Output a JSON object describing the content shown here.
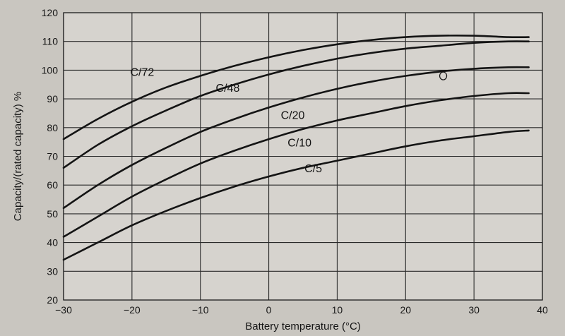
{
  "chart_data": {
    "type": "line",
    "xlabel": "Battery temperature (°C)",
    "ylabel": "Capacity/(rated capacity) %",
    "xlim": [
      -30,
      40
    ],
    "ylim": [
      20,
      120
    ],
    "x_ticks": [
      "−30",
      "−20",
      "−10",
      "0",
      "10",
      "20",
      "30",
      "40"
    ],
    "y_ticks": [
      "20",
      "30",
      "40",
      "50",
      "60",
      "70",
      "80",
      "90",
      "100",
      "110",
      "120"
    ],
    "grid": true,
    "legend": "none",
    "series": [
      {
        "name": "C/72",
        "x": [
          -30,
          -25,
          -20,
          -15,
          -10,
          -5,
          0,
          5,
          10,
          15,
          20,
          25,
          30,
          35,
          38
        ],
        "y": [
          76,
          83,
          89,
          94,
          98,
          101.5,
          104.5,
          107,
          109,
          110.5,
          111.5,
          112,
          112,
          111.5,
          111.5
        ]
      },
      {
        "name": "C/48",
        "x": [
          -30,
          -25,
          -20,
          -15,
          -10,
          -5,
          0,
          5,
          10,
          15,
          20,
          25,
          30,
          35,
          38
        ],
        "y": [
          66,
          74,
          80.5,
          86,
          91,
          95,
          98.5,
          101.5,
          104,
          106,
          107.5,
          108.5,
          109.5,
          110,
          110
        ]
      },
      {
        "name": "C/20",
        "x": [
          -30,
          -25,
          -20,
          -15,
          -10,
          -5,
          0,
          5,
          10,
          15,
          20,
          25,
          30,
          35,
          38
        ],
        "y": [
          52,
          60,
          67,
          73,
          78.5,
          83,
          87,
          90.5,
          93.5,
          96,
          98,
          99.5,
          100.5,
          101,
          101
        ]
      },
      {
        "name": "C/10",
        "x": [
          -30,
          -25,
          -20,
          -15,
          -10,
          -5,
          0,
          5,
          10,
          15,
          20,
          25,
          30,
          35,
          38
        ],
        "y": [
          42,
          49,
          56,
          62,
          67.5,
          72,
          76,
          79.5,
          82.5,
          85,
          87.5,
          89.5,
          91,
          92,
          92
        ]
      },
      {
        "name": "C/5",
        "x": [
          -30,
          -25,
          -20,
          -15,
          -10,
          -5,
          0,
          5,
          10,
          15,
          20,
          25,
          30,
          35,
          38
        ],
        "y": [
          34,
          40,
          46,
          51,
          55.5,
          59.5,
          63,
          66,
          68.5,
          71,
          73.5,
          75.5,
          77,
          78.5,
          79
        ]
      }
    ],
    "annotations": [
      {
        "text": "C/72",
        "x": -18.5,
        "y": 98,
        "series": "C/72"
      },
      {
        "text": "C/48",
        "x": -6,
        "y": 92.5,
        "series": "C/48"
      },
      {
        "text": "C/20",
        "x": 3.5,
        "y": 83,
        "series": "C/20"
      },
      {
        "text": "C/10",
        "x": 4.5,
        "y": 73.5,
        "series": "C/10"
      },
      {
        "text": "C/5",
        "x": 6.5,
        "y": 64.5,
        "series": "C/5"
      }
    ],
    "markers": [
      {
        "shape": "circle",
        "x": 25.5,
        "y": 98,
        "series": "C/20"
      }
    ]
  }
}
